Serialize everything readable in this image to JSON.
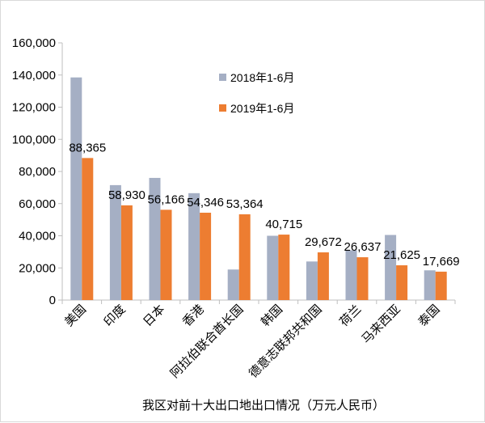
{
  "chart_data": {
    "type": "bar",
    "title": "我区对前十大出口地出口情况（万元人民币）",
    "xlabel": "",
    "ylabel": "",
    "ylim": [
      0,
      160000
    ],
    "yticks": [
      "0",
      "20,000",
      "40,000",
      "60,000",
      "80,000",
      "100,000",
      "120,000",
      "140,000",
      "160,000"
    ],
    "grid": false,
    "legend_position": "top-right",
    "categories": [
      "美国",
      "印度",
      "日本",
      "香港",
      "阿拉伯联合酋长国",
      "韩国",
      "德意志联邦共和国",
      "荷兰",
      "马来西亚",
      "泰国"
    ],
    "series": [
      {
        "name": "2018年1-6月",
        "color": "#a5afc4",
        "values": [
          138500,
          71500,
          76000,
          66500,
          19000,
          40000,
          24000,
          31000,
          40500,
          18500
        ]
      },
      {
        "name": "2019年1-6月",
        "color": "#ed7d31",
        "values": [
          88365,
          58930,
          56166,
          54346,
          53364,
          40715,
          29672,
          26637,
          21625,
          17669
        ]
      }
    ],
    "data_labels": [
      "88,365",
      "58,930",
      "56,166",
      "54,346",
      "53,364",
      "40,715",
      "29,672",
      "26,637",
      "21,625",
      "17,669"
    ]
  }
}
